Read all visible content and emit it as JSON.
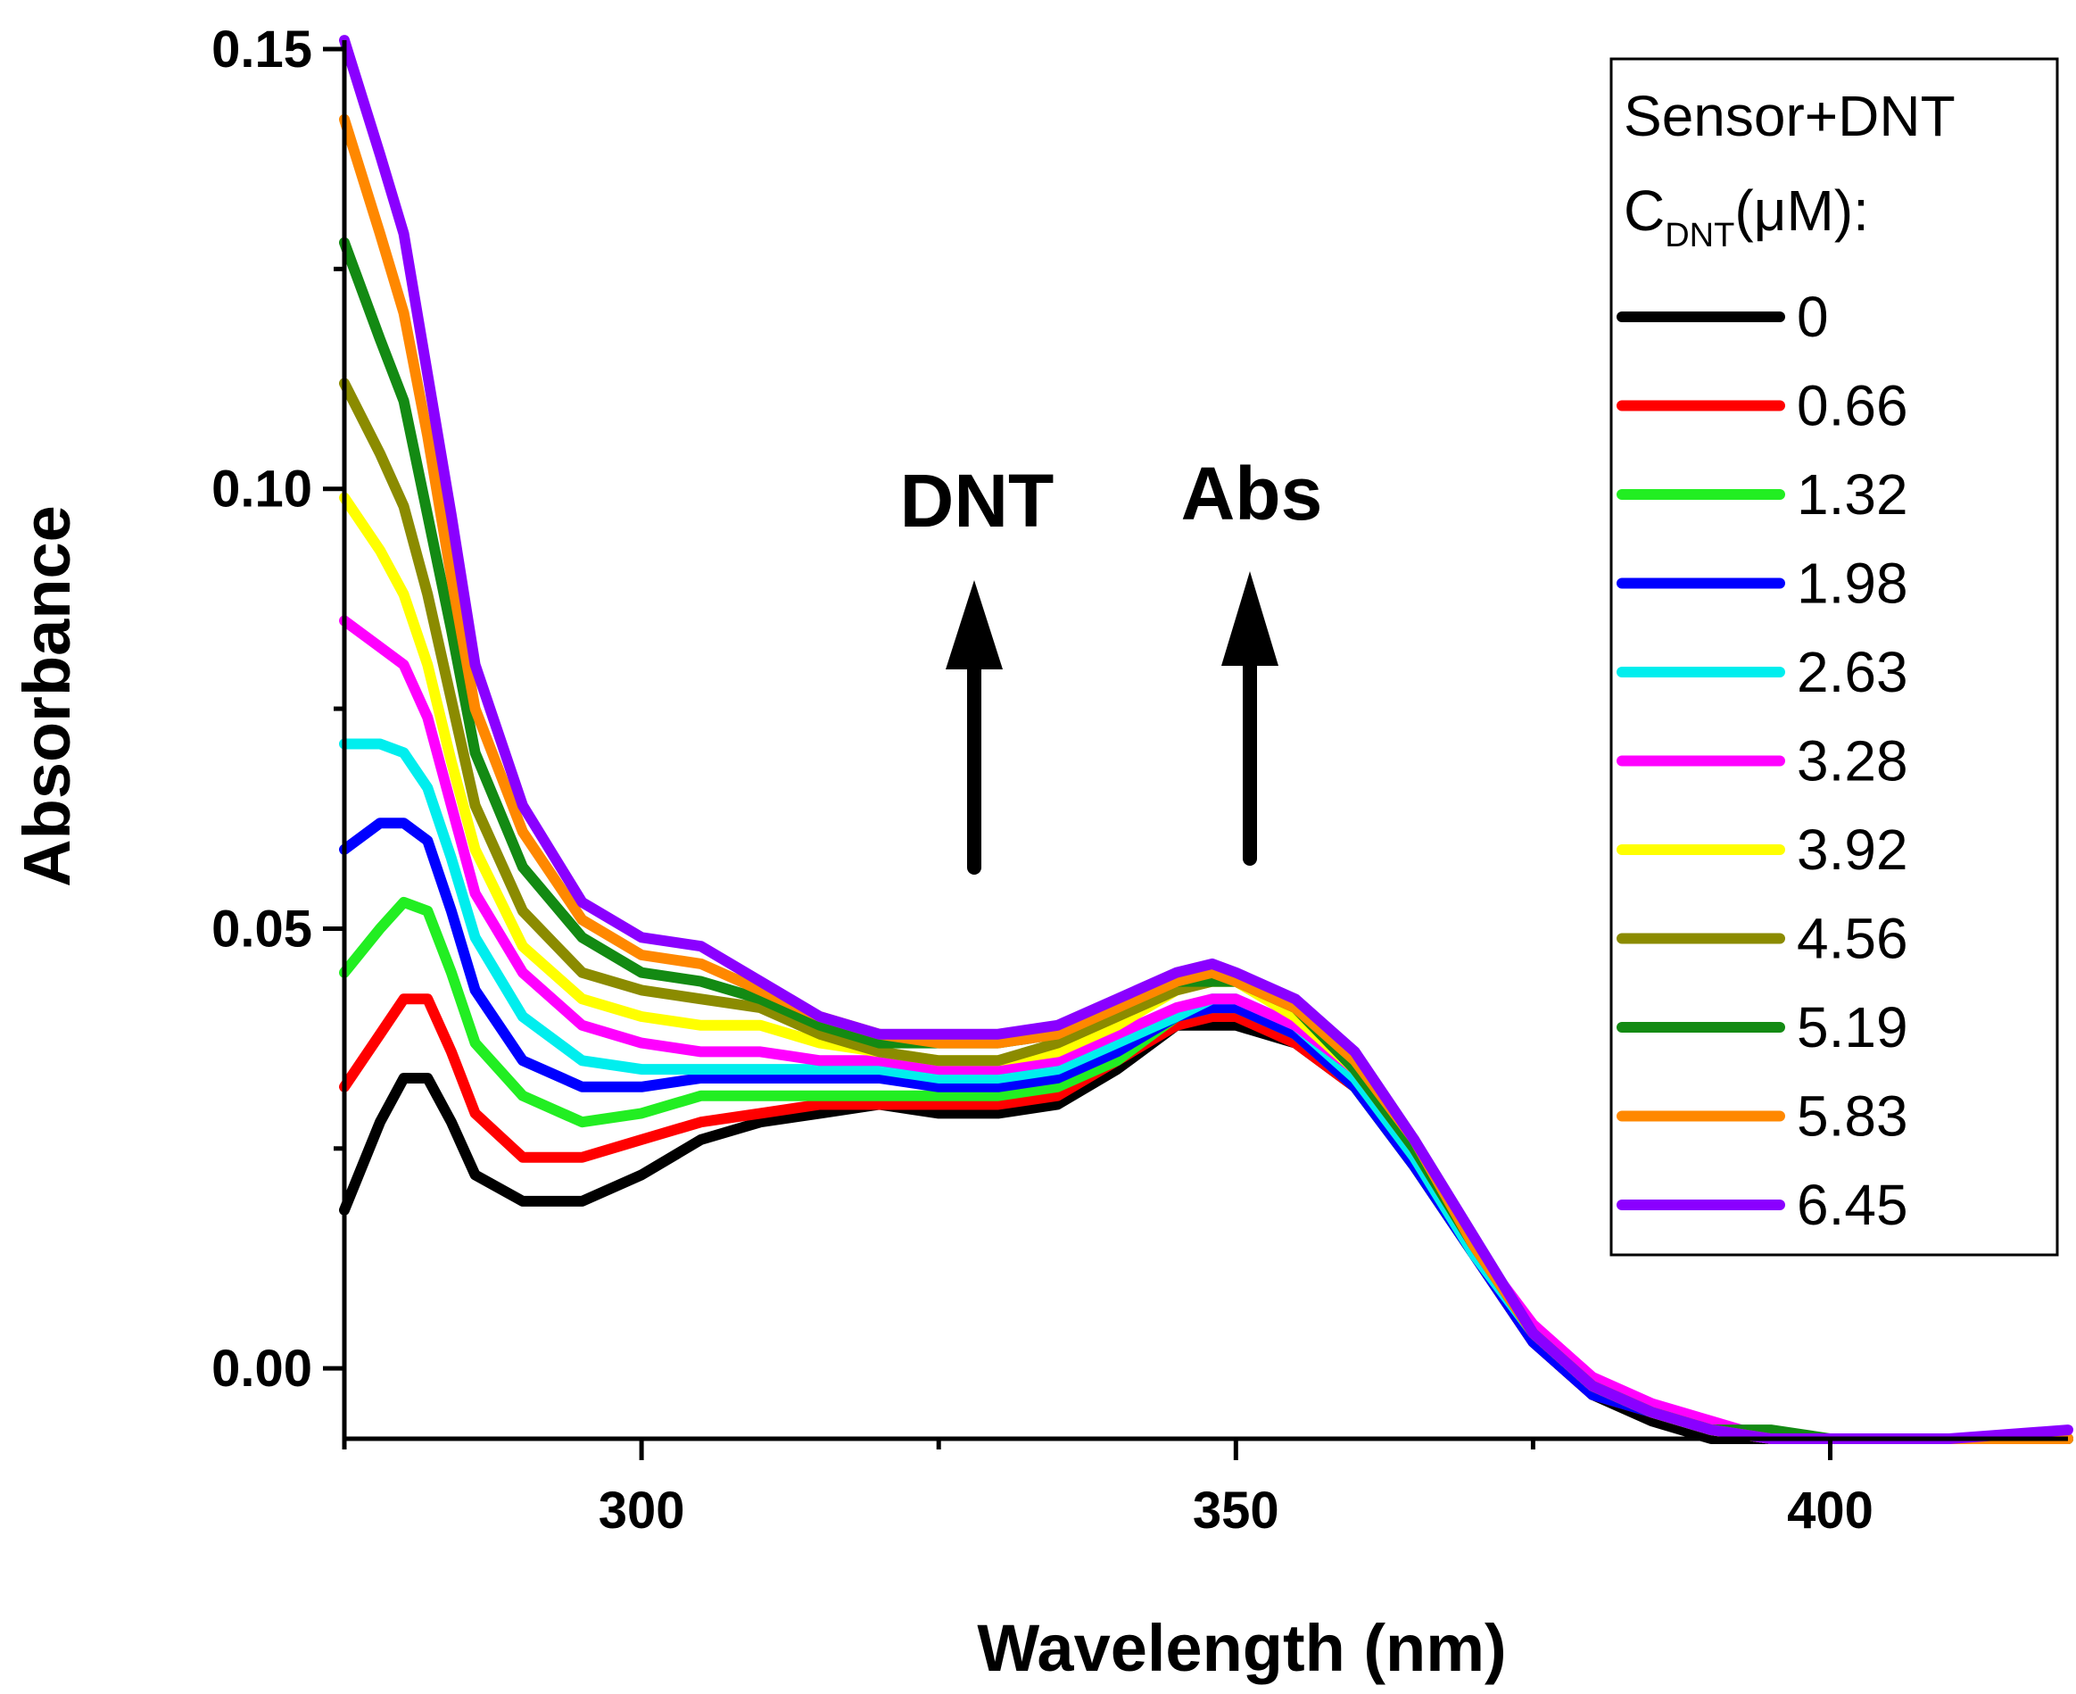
{
  "chart_data": {
    "type": "line",
    "title": "",
    "xlabel": "Wavelength (nm)",
    "ylabel": "Absorbance",
    "xlim": [
      275,
      420
    ],
    "ylim": [
      -0.008,
      0.15
    ],
    "xticks": [
      300,
      350,
      400
    ],
    "xtick_labels": [
      "300",
      "350",
      "400"
    ],
    "yticks": [
      0.0,
      0.05,
      0.1,
      0.15
    ],
    "ytick_labels": [
      "0.00",
      "0.05",
      "0.10",
      "0.15"
    ],
    "grid": false,
    "annotations": [
      {
        "text": "DNT",
        "arrow": "up"
      },
      {
        "text": "Abs",
        "arrow": "up"
      }
    ],
    "legend": {
      "position": "top-right",
      "title_line1": "Sensor+DNT",
      "title_line2_main": "C",
      "title_line2_sub": "DNT",
      "title_line2_rest": "(μM):"
    },
    "x": [
      275,
      278,
      280,
      282,
      284,
      286,
      290,
      295,
      300,
      305,
      310,
      315,
      320,
      325,
      330,
      335,
      340,
      345,
      348,
      350,
      355,
      360,
      365,
      370,
      375,
      380,
      385,
      390,
      395,
      400,
      410,
      420
    ],
    "series": [
      {
        "name": "0",
        "color": "#000000",
        "values": [
          0.018,
          0.028,
          0.033,
          0.033,
          0.028,
          0.022,
          0.019,
          0.019,
          0.022,
          0.026,
          0.028,
          0.029,
          0.03,
          0.029,
          0.029,
          0.03,
          0.034,
          0.039,
          0.039,
          0.039,
          0.037,
          0.032,
          0.023,
          0.013,
          0.003,
          -0.003,
          -0.006,
          -0.008,
          -0.008,
          -0.008,
          -0.008,
          -0.008
        ]
      },
      {
        "name": "0.66",
        "color": "#ff0000",
        "values": [
          0.032,
          0.038,
          0.042,
          0.042,
          0.036,
          0.029,
          0.024,
          0.024,
          0.026,
          0.028,
          0.029,
          0.03,
          0.03,
          0.03,
          0.03,
          0.031,
          0.035,
          0.039,
          0.04,
          0.04,
          0.037,
          0.032,
          0.023,
          0.013,
          0.003,
          -0.003,
          -0.005,
          -0.007,
          -0.008,
          -0.008,
          -0.008,
          -0.008
        ]
      },
      {
        "name": "1.32",
        "color": "#22ee22",
        "values": [
          0.045,
          0.05,
          0.053,
          0.052,
          0.045,
          0.037,
          0.031,
          0.028,
          0.029,
          0.031,
          0.031,
          0.031,
          0.031,
          0.031,
          0.031,
          0.032,
          0.035,
          0.04,
          0.041,
          0.041,
          0.038,
          0.032,
          0.023,
          0.013,
          0.004,
          -0.002,
          -0.005,
          -0.007,
          -0.008,
          -0.008,
          -0.008,
          -0.008
        ]
      },
      {
        "name": "1.98",
        "color": "#0000ff",
        "values": [
          0.059,
          0.062,
          0.062,
          0.06,
          0.052,
          0.043,
          0.035,
          0.032,
          0.032,
          0.033,
          0.033,
          0.033,
          0.033,
          0.032,
          0.032,
          0.033,
          0.036,
          0.04,
          0.041,
          0.041,
          0.038,
          0.032,
          0.023,
          0.013,
          0.003,
          -0.003,
          -0.005,
          -0.007,
          -0.008,
          -0.008,
          -0.008,
          -0.008
        ]
      },
      {
        "name": "2.63",
        "color": "#00eeee",
        "values": [
          0.071,
          0.071,
          0.07,
          0.066,
          0.058,
          0.049,
          0.04,
          0.035,
          0.034,
          0.034,
          0.034,
          0.034,
          0.034,
          0.033,
          0.033,
          0.034,
          0.037,
          0.04,
          0.042,
          0.042,
          0.039,
          0.033,
          0.024,
          0.013,
          0.004,
          -0.002,
          -0.005,
          -0.007,
          -0.008,
          -0.008,
          -0.008,
          -0.008
        ]
      },
      {
        "name": "3.28",
        "color": "#ff00ff",
        "values": [
          0.085,
          0.082,
          0.08,
          0.074,
          0.064,
          0.054,
          0.045,
          0.039,
          0.037,
          0.036,
          0.036,
          0.035,
          0.035,
          0.034,
          0.034,
          0.035,
          0.038,
          0.041,
          0.042,
          0.042,
          0.039,
          0.034,
          0.025,
          0.014,
          0.005,
          -0.001,
          -0.004,
          -0.006,
          -0.008,
          -0.008,
          -0.008,
          -0.008
        ]
      },
      {
        "name": "3.92",
        "color": "#ffff00",
        "values": [
          0.099,
          0.093,
          0.088,
          0.08,
          0.069,
          0.059,
          0.048,
          0.042,
          0.04,
          0.039,
          0.039,
          0.037,
          0.036,
          0.035,
          0.035,
          0.036,
          0.039,
          0.043,
          0.044,
          0.044,
          0.04,
          0.034,
          0.025,
          0.014,
          0.004,
          -0.002,
          -0.005,
          -0.007,
          -0.008,
          -0.008,
          -0.008,
          -0.008
        ]
      },
      {
        "name": "4.56",
        "color": "#8b8b00",
        "values": [
          0.112,
          0.104,
          0.098,
          0.088,
          0.076,
          0.064,
          0.052,
          0.045,
          0.043,
          0.042,
          0.041,
          0.038,
          0.036,
          0.035,
          0.035,
          0.037,
          0.04,
          0.043,
          0.044,
          0.044,
          0.041,
          0.034,
          0.025,
          0.014,
          0.004,
          -0.002,
          -0.005,
          -0.007,
          -0.008,
          -0.008,
          -0.008,
          -0.008
        ]
      },
      {
        "name": "5.19",
        "color": "#138a13",
        "values": [
          0.128,
          0.117,
          0.11,
          0.097,
          0.084,
          0.07,
          0.057,
          0.049,
          0.045,
          0.044,
          0.042,
          0.039,
          0.037,
          0.037,
          0.037,
          0.038,
          0.041,
          0.044,
          0.044,
          0.044,
          0.041,
          0.034,
          0.025,
          0.014,
          0.004,
          -0.002,
          -0.005,
          -0.007,
          -0.007,
          -0.008,
          -0.008,
          -0.008
        ]
      },
      {
        "name": "5.83",
        "color": "#ff8800",
        "values": [
          0.142,
          0.129,
          0.12,
          0.106,
          0.09,
          0.075,
          0.061,
          0.051,
          0.047,
          0.046,
          0.043,
          0.04,
          0.038,
          0.037,
          0.037,
          0.038,
          0.041,
          0.044,
          0.045,
          0.044,
          0.041,
          0.035,
          0.026,
          0.014,
          0.004,
          -0.002,
          -0.005,
          -0.007,
          -0.008,
          -0.008,
          -0.008,
          -0.008
        ]
      },
      {
        "name": "6.45",
        "color": "#8a00ff",
        "values": [
          0.151,
          0.138,
          0.129,
          0.113,
          0.097,
          0.08,
          0.064,
          0.053,
          0.049,
          0.048,
          0.044,
          0.04,
          0.038,
          0.038,
          0.038,
          0.039,
          0.042,
          0.045,
          0.046,
          0.045,
          0.042,
          0.036,
          0.026,
          0.015,
          0.004,
          -0.002,
          -0.005,
          -0.007,
          -0.008,
          -0.008,
          -0.008,
          -0.007
        ]
      }
    ]
  }
}
